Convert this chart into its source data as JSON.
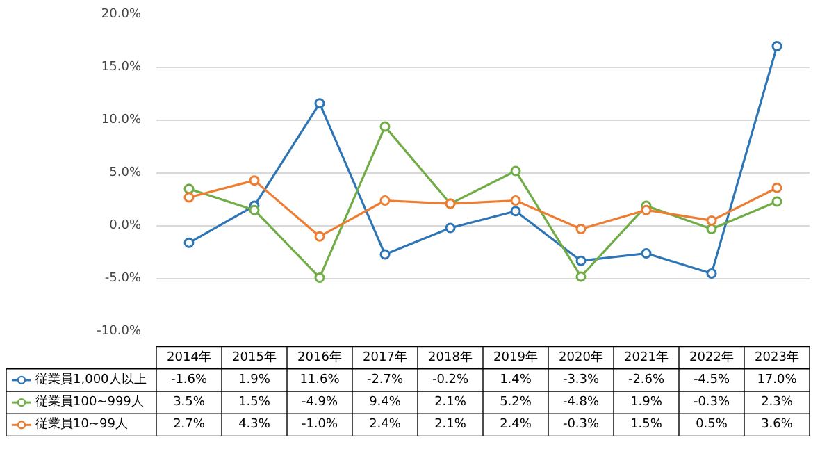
{
  "chart_data": {
    "type": "line",
    "categories": [
      "2014年",
      "2015年",
      "2016年",
      "2017年",
      "2018年",
      "2019年",
      "2020年",
      "2021年",
      "2022年",
      "2023年"
    ],
    "ylim": [
      -10,
      20
    ],
    "yticks": [
      {
        "value": -10,
        "label": "-10.0%"
      },
      {
        "value": -5,
        "label": "-5.0%"
      },
      {
        "value": 0,
        "label": "0.0%"
      },
      {
        "value": 5,
        "label": "5.0%"
      },
      {
        "value": 10,
        "label": "10.0%"
      },
      {
        "value": 15,
        "label": "15.0%"
      },
      {
        "value": 20,
        "label": "20.0%"
      }
    ],
    "grid": "y",
    "legend": "bottom left",
    "marker": "circle",
    "line_style": "solid",
    "series": [
      {
        "name": "従業員1,000人以上",
        "color": "#2e75b6",
        "values": [
          -1.6,
          1.9,
          11.6,
          -2.7,
          -0.2,
          1.4,
          -3.3,
          -2.6,
          -4.5,
          17.0
        ],
        "value_labels": [
          "-1.6%",
          "1.9%",
          "11.6%",
          "-2.7%",
          "-0.2%",
          "1.4%",
          "-3.3%",
          "-2.6%",
          "-4.5%",
          "17.0%"
        ]
      },
      {
        "name": "従業員100~999人",
        "color": "#70ad47",
        "values": [
          3.5,
          1.5,
          -4.9,
          9.4,
          2.1,
          5.2,
          -4.8,
          1.9,
          -0.3,
          2.3
        ],
        "value_labels": [
          "3.5%",
          "1.5%",
          "-4.9%",
          "9.4%",
          "2.1%",
          "5.2%",
          "-4.8%",
          "1.9%",
          "-0.3%",
          "2.3%"
        ]
      },
      {
        "name": "従業員10~99人",
        "color": "#ed7d31",
        "values": [
          2.7,
          4.3,
          -1.0,
          2.4,
          2.1,
          2.4,
          -0.3,
          1.5,
          0.5,
          3.6
        ],
        "value_labels": [
          "2.7%",
          "4.3%",
          "-1.0%",
          "2.4%",
          "2.1%",
          "2.4%",
          "-0.3%",
          "1.5%",
          "0.5%",
          "3.6%"
        ]
      }
    ]
  }
}
